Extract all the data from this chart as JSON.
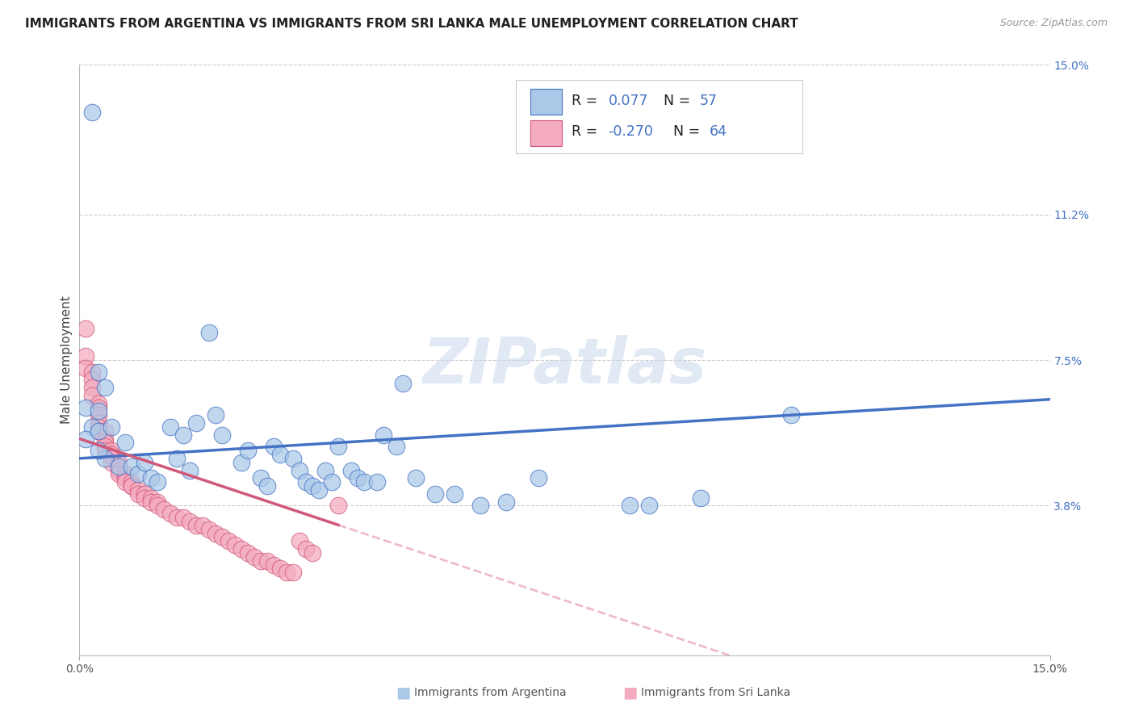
{
  "title": "IMMIGRANTS FROM ARGENTINA VS IMMIGRANTS FROM SRI LANKA MALE UNEMPLOYMENT CORRELATION CHART",
  "source": "Source: ZipAtlas.com",
  "ylabel": "Male Unemployment",
  "x_min": 0.0,
  "x_max": 0.15,
  "y_min": 0.0,
  "y_max": 0.15,
  "x_tick_labels": [
    "0.0%",
    "15.0%"
  ],
  "y_tick_labels": [
    "15.0%",
    "11.2%",
    "7.5%",
    "3.8%"
  ],
  "y_tick_values": [
    0.15,
    0.112,
    0.075,
    0.038
  ],
  "grid_color": "#cccccc",
  "color_argentina": "#aac8e8",
  "color_srilanka": "#f4aabf",
  "line_color_argentina": "#4472c4",
  "line_color_srilanka": "#d05878",
  "background_color": "#ffffff",
  "title_fontsize": 11,
  "axis_label_fontsize": 11,
  "tick_fontsize": 10,
  "watermark_color": "#c8d8ec",
  "watermark_alpha": 0.55,
  "legend_text_color": "#4472c4",
  "legend_label_color": "#333333",
  "argentina_x": [
    0.002,
    0.003,
    0.001,
    0.003,
    0.004,
    0.002,
    0.001,
    0.003,
    0.004,
    0.003,
    0.005,
    0.006,
    0.007,
    0.008,
    0.009,
    0.01,
    0.011,
    0.012,
    0.014,
    0.015,
    0.016,
    0.017,
    0.018,
    0.02,
    0.021,
    0.022,
    0.025,
    0.026,
    0.028,
    0.029,
    0.03,
    0.031,
    0.033,
    0.034,
    0.035,
    0.036,
    0.037,
    0.038,
    0.039,
    0.04,
    0.042,
    0.043,
    0.044,
    0.046,
    0.047,
    0.049,
    0.05,
    0.052,
    0.055,
    0.058,
    0.062,
    0.066,
    0.071,
    0.085,
    0.088,
    0.096,
    0.11
  ],
  "argentina_y": [
    0.138,
    0.072,
    0.063,
    0.062,
    0.068,
    0.058,
    0.055,
    0.057,
    0.05,
    0.052,
    0.058,
    0.048,
    0.054,
    0.048,
    0.046,
    0.049,
    0.045,
    0.044,
    0.058,
    0.05,
    0.056,
    0.047,
    0.059,
    0.082,
    0.061,
    0.056,
    0.049,
    0.052,
    0.045,
    0.043,
    0.053,
    0.051,
    0.05,
    0.047,
    0.044,
    0.043,
    0.042,
    0.047,
    0.044,
    0.053,
    0.047,
    0.045,
    0.044,
    0.044,
    0.056,
    0.053,
    0.069,
    0.045,
    0.041,
    0.041,
    0.038,
    0.039,
    0.045,
    0.038,
    0.038,
    0.04,
    0.061
  ],
  "srilanka_x": [
    0.001,
    0.001,
    0.001,
    0.002,
    0.002,
    0.002,
    0.002,
    0.003,
    0.003,
    0.003,
    0.003,
    0.003,
    0.003,
    0.004,
    0.004,
    0.004,
    0.004,
    0.004,
    0.005,
    0.005,
    0.005,
    0.005,
    0.006,
    0.006,
    0.006,
    0.007,
    0.007,
    0.007,
    0.008,
    0.008,
    0.008,
    0.009,
    0.009,
    0.01,
    0.01,
    0.011,
    0.011,
    0.012,
    0.012,
    0.013,
    0.014,
    0.015,
    0.016,
    0.017,
    0.018,
    0.019,
    0.02,
    0.021,
    0.022,
    0.023,
    0.024,
    0.025,
    0.026,
    0.027,
    0.028,
    0.029,
    0.03,
    0.031,
    0.032,
    0.033,
    0.034,
    0.035,
    0.036,
    0.04
  ],
  "srilanka_y": [
    0.083,
    0.076,
    0.073,
    0.072,
    0.07,
    0.068,
    0.066,
    0.064,
    0.063,
    0.061,
    0.059,
    0.058,
    0.057,
    0.057,
    0.055,
    0.054,
    0.053,
    0.052,
    0.052,
    0.051,
    0.05,
    0.049,
    0.049,
    0.047,
    0.046,
    0.046,
    0.045,
    0.044,
    0.044,
    0.043,
    0.043,
    0.042,
    0.041,
    0.041,
    0.04,
    0.04,
    0.039,
    0.039,
    0.038,
    0.037,
    0.036,
    0.035,
    0.035,
    0.034,
    0.033,
    0.033,
    0.032,
    0.031,
    0.03,
    0.029,
    0.028,
    0.027,
    0.026,
    0.025,
    0.024,
    0.024,
    0.023,
    0.022,
    0.021,
    0.021,
    0.029,
    0.027,
    0.026,
    0.038
  ]
}
